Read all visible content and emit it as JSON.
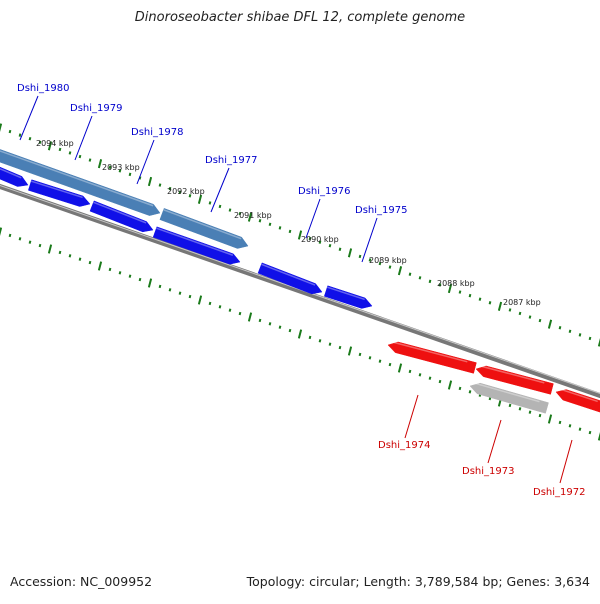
{
  "title": "Dinoroseobacter shibae DFL 12, complete genome",
  "footer": {
    "accession": "Accession: NC_009952",
    "summary": "Topology: circular; Length: 3,789,584 bp; Genes: 3,634"
  },
  "colors": {
    "forward_gene": "#1010e8",
    "forward_gene_selected": "#4a7fb5",
    "reverse_gene": "#ee1010",
    "reverse_gene_grey": "#b4b4b4",
    "backbone": "#777777",
    "tick": "#1a7a1a",
    "label_forward": "#0000cc",
    "label_reverse": "#cc0000"
  },
  "ticks": [
    {
      "label": "2094 kbp"
    },
    {
      "label": "2093 kbp"
    },
    {
      "label": "2092 kbp"
    },
    {
      "label": "2091 kbp"
    },
    {
      "label": "2090 kbp"
    },
    {
      "label": "2089 kbp"
    },
    {
      "label": "2088 kbp"
    },
    {
      "label": "2087 kbp"
    }
  ],
  "forward_genes": [
    {
      "name": "Dshi_1980"
    },
    {
      "name": "Dshi_1979"
    },
    {
      "name": "Dshi_1978"
    },
    {
      "name": "Dshi_1977"
    },
    {
      "name": "Dshi_1976"
    },
    {
      "name": "Dshi_1975"
    }
  ],
  "reverse_genes": [
    {
      "name": "Dshi_1974"
    },
    {
      "name": "Dshi_1973"
    },
    {
      "name": "Dshi_1972"
    }
  ]
}
